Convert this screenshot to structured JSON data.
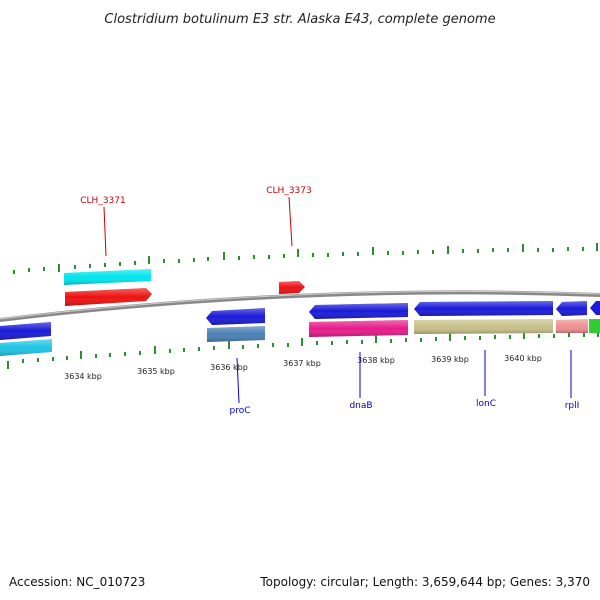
{
  "title": "Clostridium botulinum E3 str. Alaska E43, complete genome",
  "footer": {
    "accession": "Accession: NC_010723",
    "topology": "Topology: circular; Length: 3,659,644 bp; Genes: 3,370"
  },
  "colors": {
    "backbone": "#8a8a8a",
    "tick": "#2e8b2e",
    "label_red": "#cc0000",
    "label_blue": "#0000cc"
  },
  "scale_labels": [
    "3634 kbp",
    "3635 kbp",
    "3636 kbp",
    "3637 kbp",
    "3638 kbp",
    "3639 kbp",
    "3640 kbp"
  ],
  "genes": [
    {
      "name": "CLH_3371",
      "label_color": "#cc0000"
    },
    {
      "name": "CLH_3373",
      "label_color": "#cc0000"
    },
    {
      "name": "proC",
      "label_color": "#0000cc"
    },
    {
      "name": "dnaB",
      "label_color": "#0000cc"
    },
    {
      "name": "lonC",
      "label_color": "#0000cc"
    },
    {
      "name": "rplI",
      "label_color": "#0000cc"
    }
  ],
  "feature_colors": [
    "#1a1ad8",
    "#1fc6e6",
    "#00e5ee",
    "#ee1111",
    "#4a7fb5",
    "#e81a8a",
    "#c8c08a",
    "#f09090",
    "#33cc33"
  ]
}
